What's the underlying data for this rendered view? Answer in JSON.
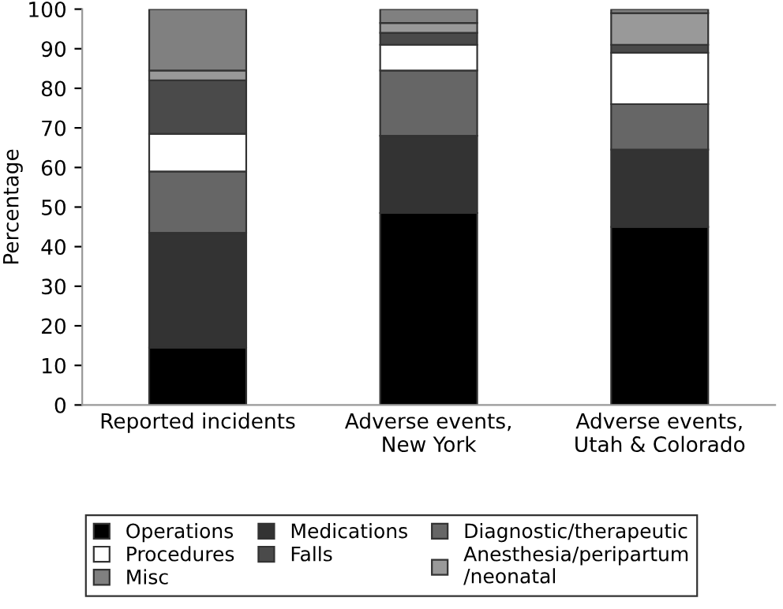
{
  "chart_data": {
    "type": "bar",
    "stacked": true,
    "ylabel": "Percentage",
    "categories": [
      "Reported incidents",
      "Adverse events,\nNew York",
      "Adverse events,\nUtah & Colorado"
    ],
    "series": [
      {
        "name": "Operations",
        "color": "#000000",
        "values": [
          14.5,
          48.5,
          45
        ]
      },
      {
        "name": "Medications",
        "color": "#333333",
        "values": [
          29,
          19.5,
          19.5
        ]
      },
      {
        "name": "Diagnostic/therapeutic",
        "color": "#666666",
        "values": [
          15.5,
          16.5,
          11.5
        ]
      },
      {
        "name": "Procedures",
        "color": "#ffffff",
        "values": [
          9.5,
          6.5,
          13
        ]
      },
      {
        "name": "Falls",
        "color": "#4a4a4a",
        "values": [
          13.5,
          3,
          2
        ]
      },
      {
        "name": "Anesthesia/peripartum\n/neonatal",
        "color": "#999999",
        "values": [
          2.5,
          2.5,
          8
        ]
      },
      {
        "name": "Misc",
        "color": "#808080",
        "values": [
          15.5,
          3.5,
          1
        ]
      }
    ],
    "ylim": [
      0,
      100
    ],
    "yticks": [
      0,
      10,
      20,
      30,
      40,
      50,
      60,
      70,
      80,
      90,
      100
    ],
    "grid": false,
    "legend": "bottom"
  }
}
